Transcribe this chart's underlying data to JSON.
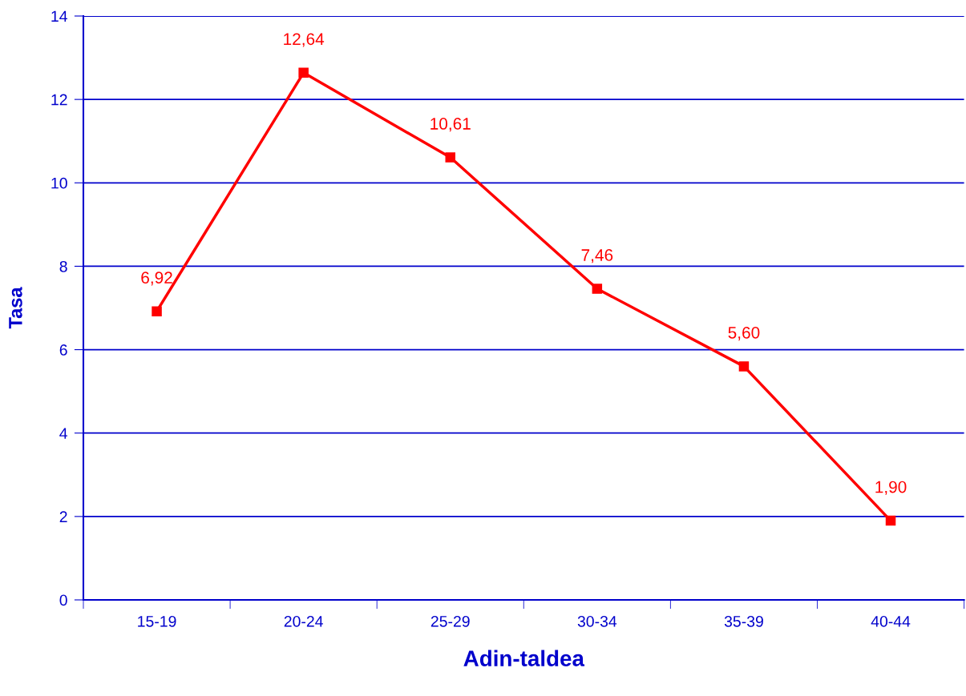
{
  "chart_data": {
    "type": "line",
    "xlabel": "Adin-taldea",
    "ylabel": "Tasa",
    "categories": [
      "15-19",
      "20-24",
      "25-29",
      "30-34",
      "35-39",
      "40-44"
    ],
    "series": [
      {
        "color": "#ff0000",
        "values": [
          6.92,
          12.64,
          10.61,
          7.46,
          5.6,
          1.9
        ],
        "value_labels": [
          "6,92",
          "12,64",
          "10,61",
          "7,46",
          "5,60",
          "1,90"
        ]
      }
    ],
    "ylim": [
      0,
      14
    ],
    "yticks": [
      0,
      2,
      4,
      6,
      8,
      10,
      12,
      14
    ],
    "grid": "y",
    "marker": "square",
    "line_style": "solid",
    "legend": false
  }
}
